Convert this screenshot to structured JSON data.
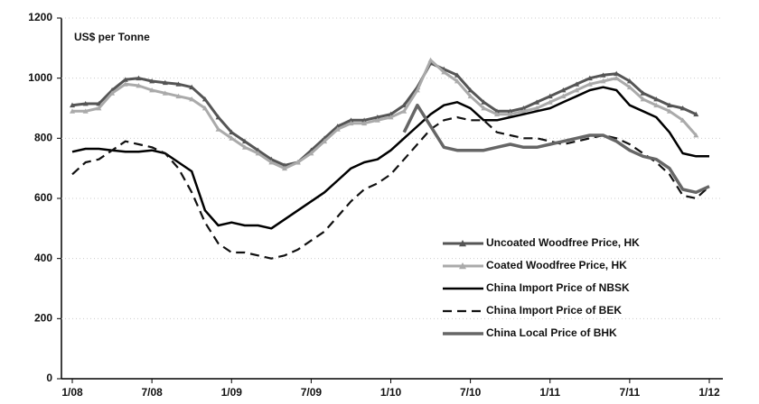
{
  "chart_data": {
    "type": "line",
    "annotation": "US$ per Tonne",
    "categories": [
      "1/08",
      null,
      null,
      null,
      null,
      null,
      "7/08",
      null,
      null,
      null,
      null,
      null,
      "1/09",
      null,
      null,
      null,
      null,
      null,
      "7/09",
      null,
      null,
      null,
      null,
      null,
      "1/10",
      null,
      null,
      null,
      null,
      null,
      "7/10",
      null,
      null,
      null,
      null,
      null,
      "1/11",
      null,
      null,
      null,
      null,
      null,
      "7/11",
      null,
      null,
      null,
      null,
      null,
      "1/12"
    ],
    "ylim": [
      0,
      1200
    ],
    "yticks": [
      0,
      200,
      400,
      600,
      800,
      1000,
      1200
    ],
    "grid": true,
    "legend": "lower right",
    "series": [
      {
        "name": "Uncoated Woodfree Price, HK",
        "color": "#555555",
        "style": "solid",
        "marker": "triangle",
        "values": [
          910,
          915,
          915,
          960,
          995,
          1000,
          990,
          985,
          980,
          970,
          930,
          870,
          820,
          790,
          760,
          730,
          710,
          720,
          760,
          800,
          840,
          860,
          860,
          870,
          880,
          910,
          970,
          1050,
          1030,
          1010,
          960,
          920,
          890,
          890,
          900,
          920,
          940,
          960,
          980,
          1000,
          1010,
          1015,
          990,
          950,
          930,
          910,
          900,
          880,
          null
        ]
      },
      {
        "name": "Coated Woodfree Price, HK",
        "color": "#aaaaaa",
        "style": "solid",
        "marker": "triangle",
        "values": [
          890,
          890,
          900,
          950,
          980,
          975,
          960,
          950,
          940,
          930,
          900,
          830,
          800,
          770,
          750,
          720,
          700,
          720,
          750,
          790,
          830,
          850,
          850,
          860,
          870,
          890,
          960,
          1060,
          1020,
          990,
          940,
          900,
          880,
          880,
          890,
          900,
          920,
          940,
          960,
          980,
          990,
          1000,
          970,
          930,
          910,
          890,
          860,
          810,
          null
        ]
      },
      {
        "name": "China Import Price of NBSK",
        "color": "#000000",
        "style": "solid",
        "values": [
          755,
          765,
          765,
          760,
          755,
          755,
          760,
          750,
          720,
          690,
          560,
          510,
          520,
          510,
          510,
          500,
          530,
          560,
          590,
          620,
          660,
          700,
          720,
          730,
          760,
          800,
          840,
          880,
          910,
          920,
          900,
          860,
          860,
          870,
          880,
          890,
          900,
          920,
          940,
          960,
          970,
          960,
          910,
          890,
          870,
          820,
          750,
          740,
          740
        ]
      },
      {
        "name": "China Import Price of BEK",
        "color": "#111111",
        "style": "dashed",
        "values": [
          680,
          720,
          730,
          760,
          790,
          780,
          770,
          750,
          700,
          620,
          520,
          450,
          420,
          420,
          410,
          400,
          410,
          430,
          460,
          490,
          540,
          590,
          630,
          650,
          680,
          730,
          780,
          830,
          860,
          870,
          860,
          860,
          820,
          810,
          800,
          800,
          790,
          780,
          790,
          800,
          810,
          800,
          780,
          750,
          720,
          680,
          610,
          600,
          640
        ]
      },
      {
        "name": "China Local Price of BHK",
        "color": "#666666",
        "style": "thick",
        "values": [
          null,
          null,
          null,
          null,
          null,
          null,
          null,
          null,
          null,
          null,
          null,
          null,
          null,
          null,
          null,
          null,
          null,
          null,
          null,
          null,
          null,
          null,
          null,
          null,
          null,
          820,
          910,
          840,
          770,
          760,
          760,
          760,
          770,
          780,
          770,
          770,
          780,
          790,
          800,
          810,
          810,
          790,
          760,
          740,
          730,
          700,
          630,
          620,
          640
        ]
      }
    ]
  }
}
